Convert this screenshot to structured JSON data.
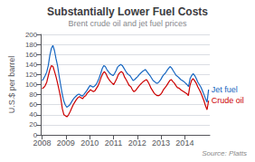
{
  "chart_data": {
    "type": "line",
    "title": "Substantially Lower Fuel Costs",
    "subtitle": "Brent crude oil and jet fuel prices",
    "ylabel": "U.S.$ per barrel",
    "source": "Source: Platts",
    "xlim": [
      2007.95,
      2015.05
    ],
    "xticks": [
      2008,
      2009,
      2010,
      2011,
      2012,
      2013,
      2014
    ],
    "ylim": [
      0,
      200
    ],
    "yticks": [
      0,
      20,
      40,
      60,
      80,
      100,
      120,
      140,
      160,
      180,
      200
    ],
    "grid": true,
    "series": [
      {
        "name": "Jet fuel",
        "color": "#1565c0",
        "x": [
          2008,
          2008.0648,
          2008.1296,
          2008.1944,
          2008.2593,
          2008.3241,
          2008.3889,
          2008.4537,
          2008.5185,
          2008.5833,
          2008.6481,
          2008.713,
          2008.7778,
          2008.8426,
          2008.9074,
          2008.9722,
          2009.037,
          2009.1019,
          2009.1667,
          2009.2315,
          2009.2963,
          2009.3611,
          2009.4259,
          2009.4907,
          2009.5556,
          2009.6204,
          2009.6852,
          2009.75,
          2009.8148,
          2009.8796,
          2009.9444,
          2010.0093,
          2010.0741,
          2010.1389,
          2010.2037,
          2010.2685,
          2010.3333,
          2010.3981,
          2010.463,
          2010.5278,
          2010.5926,
          2010.6574,
          2010.7222,
          2010.787,
          2010.8519,
          2010.9167,
          2010.9815,
          2011.0463,
          2011.1111,
          2011.1759,
          2011.2407,
          2011.3056,
          2011.3704,
          2011.4352,
          2011.5,
          2011.5648,
          2011.6296,
          2011.6944,
          2011.7593,
          2011.8241,
          2011.8889,
          2011.9537,
          2012.0185,
          2012.0833,
          2012.1481,
          2012.213,
          2012.2778,
          2012.3426,
          2012.4074,
          2012.4722,
          2012.537,
          2012.6019,
          2012.6667,
          2012.7315,
          2012.7963,
          2012.8611,
          2012.9259,
          2012.9907,
          2013.0556,
          2013.1204,
          2013.1852,
          2013.25,
          2013.3148,
          2013.3796,
          2013.4444,
          2013.5093,
          2013.5741,
          2013.6389,
          2013.7037,
          2013.7685,
          2013.8333,
          2013.8981,
          2013.963,
          2014.0278,
          2014.0926,
          2014.1574,
          2014.2222,
          2014.287,
          2014.3519,
          2014.4167,
          2014.4815,
          2014.5463,
          2014.6111,
          2014.6759,
          2014.7407,
          2014.8056,
          2014.8704,
          2014.9352,
          2015
        ],
        "values": [
          108,
          112,
          118,
          125,
          138,
          158,
          172,
          178,
          168,
          152,
          138,
          118,
          100,
          82,
          68,
          60,
          55,
          57,
          60,
          65,
          70,
          74,
          77,
          80,
          81,
          79,
          77,
          80,
          84,
          88,
          93,
          98,
          97,
          95,
          97,
          100,
          106,
          113,
          122,
          132,
          138,
          136,
          130,
          126,
          122,
          120,
          118,
          122,
          128,
          135,
          138,
          140,
          138,
          133,
          128,
          123,
          120,
          118,
          113,
          108,
          110,
          113,
          116,
          120,
          123,
          126,
          128,
          130,
          126,
          122,
          118,
          113,
          108,
          106,
          103,
          103,
          106,
          110,
          116,
          120,
          123,
          128,
          132,
          136,
          133,
          128,
          123,
          118,
          116,
          113,
          110,
          108,
          106,
          103,
          100,
          96,
          112,
          118,
          122,
          118,
          112,
          105,
          100,
          95,
          88,
          80,
          72,
          65,
          90
        ]
      },
      {
        "name": "Crude oil",
        "color": "#cc0000",
        "x": [
          2008,
          2008.0654,
          2008.1308,
          2008.1963,
          2008.2617,
          2008.3271,
          2008.3925,
          2008.4579,
          2008.5234,
          2008.5888,
          2008.6542,
          2008.7196,
          2008.785,
          2008.8505,
          2008.9159,
          2008.9813,
          2009.0467,
          2009.1121,
          2009.1776,
          2009.243,
          2009.3084,
          2009.3738,
          2009.4393,
          2009.5047,
          2009.5701,
          2009.6355,
          2009.7009,
          2009.7664,
          2009.8318,
          2009.8972,
          2009.9626,
          2010.028,
          2010.0935,
          2010.1589,
          2010.2243,
          2010.2897,
          2010.3551,
          2010.4206,
          2010.486,
          2010.5514,
          2010.6168,
          2010.6822,
          2010.7477,
          2010.8131,
          2010.8785,
          2010.9439,
          2011.0093,
          2011.0748,
          2011.1402,
          2011.2056,
          2011.271,
          2011.3364,
          2011.4019,
          2011.4673,
          2011.5327,
          2011.5981,
          2011.6636,
          2011.729,
          2011.7944,
          2011.8598,
          2011.9252,
          2011.9907,
          2012.0561,
          2012.1215,
          2012.1869,
          2012.2523,
          2012.3178,
          2012.3832,
          2012.4486,
          2012.514,
          2012.5794,
          2012.6449,
          2012.7103,
          2012.7757,
          2012.8411,
          2012.9065,
          2012.972,
          2013.0374,
          2013.1028,
          2013.1682,
          2013.2336,
          2013.2991,
          2013.3645,
          2013.4299,
          2013.4953,
          2013.5607,
          2013.6262,
          2013.6916,
          2013.757,
          2013.8224,
          2013.8879,
          2013.9533,
          2014.0187,
          2014.0841,
          2014.1495,
          2014.215,
          2014.2804,
          2014.3458,
          2014.4112,
          2014.4766,
          2014.5421,
          2014.6075,
          2014.6729,
          2014.7383,
          2014.8037,
          2014.8692,
          2014.9346,
          2015
        ],
        "values": [
          92,
          94,
          98,
          105,
          118,
          130,
          138,
          136,
          126,
          115,
          102,
          88,
          73,
          52,
          40,
          38,
          36,
          40,
          46,
          53,
          60,
          65,
          70,
          74,
          76,
          74,
          72,
          76,
          78,
          83,
          86,
          90,
          88,
          86,
          88,
          93,
          98,
          106,
          115,
          122,
          126,
          122,
          115,
          110,
          106,
          103,
          100,
          106,
          112,
          120,
          124,
          126,
          123,
          115,
          110,
          104,
          98,
          96,
          90,
          86,
          88,
          92,
          96,
          100,
          103,
          106,
          108,
          110,
          106,
          100,
          93,
          88,
          83,
          80,
          78,
          78,
          80,
          84,
          90,
          94,
          98,
          103,
          108,
          110,
          106,
          103,
          98,
          94,
          93,
          90,
          88,
          86,
          84,
          82,
          78,
          98,
          108,
          112,
          108,
          103,
          96,
          90,
          84,
          76,
          68,
          58,
          50,
          68
        ]
      }
    ]
  }
}
